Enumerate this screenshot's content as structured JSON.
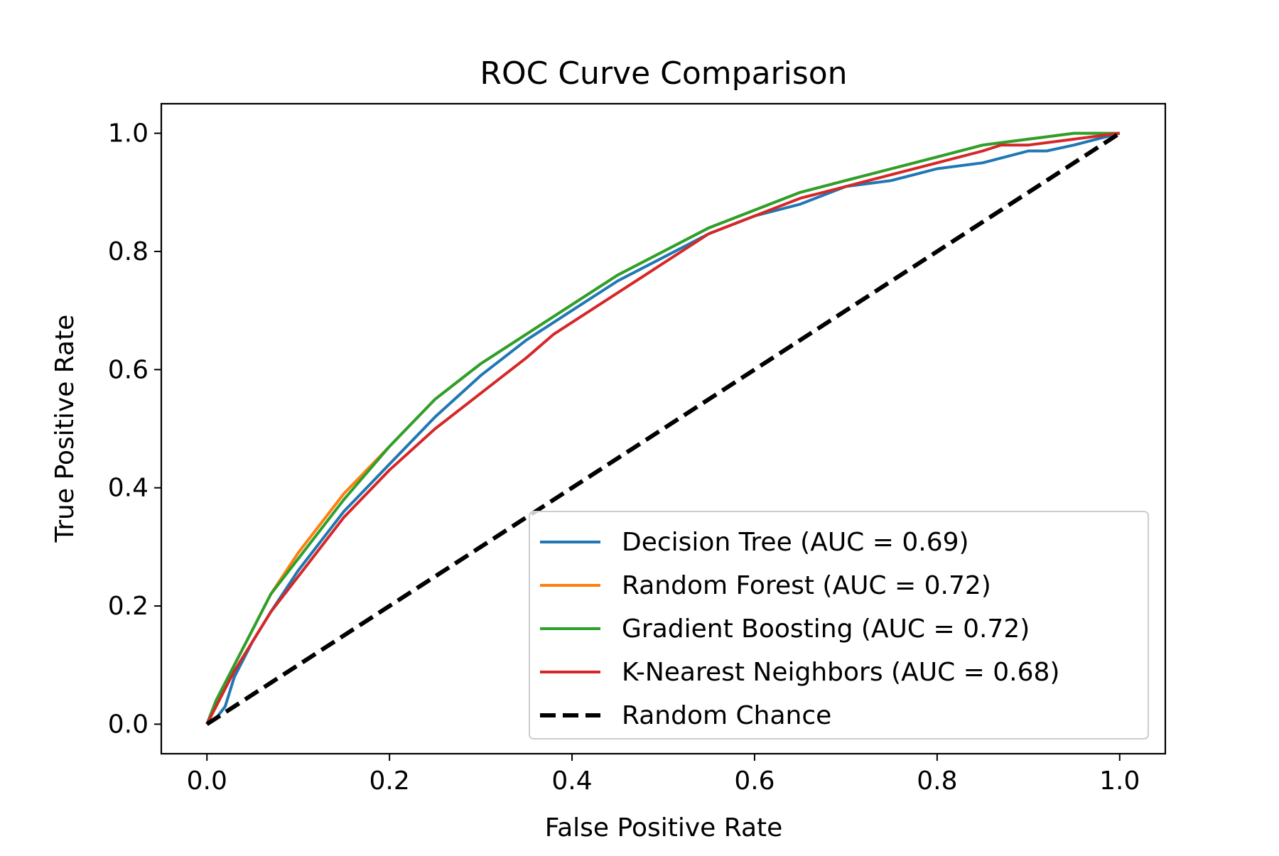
{
  "chart_data": {
    "type": "line",
    "title": "ROC Curve Comparison",
    "xlabel": "False Positive Rate",
    "ylabel": "True Positive Rate",
    "xlim": [
      -0.05,
      1.05
    ],
    "ylim": [
      -0.05,
      1.05
    ],
    "xticks": [
      "0.0",
      "0.2",
      "0.4",
      "0.6",
      "0.8",
      "1.0"
    ],
    "yticks": [
      "0.0",
      "0.2",
      "0.4",
      "0.6",
      "0.8",
      "1.0"
    ],
    "grid": false,
    "legend_position": "lower right",
    "series": [
      {
        "name": "Decision Tree (AUC = 0.69)",
        "color": "#1f77b4",
        "x": [
          0.0,
          0.01,
          0.02,
          0.03,
          0.05,
          0.07,
          0.1,
          0.15,
          0.2,
          0.25,
          0.3,
          0.35,
          0.4,
          0.45,
          0.5,
          0.55,
          0.6,
          0.65,
          0.7,
          0.75,
          0.8,
          0.85,
          0.9,
          0.92,
          0.95,
          1.0
        ],
        "y": [
          0.0,
          0.01,
          0.03,
          0.08,
          0.14,
          0.19,
          0.26,
          0.36,
          0.44,
          0.52,
          0.59,
          0.65,
          0.7,
          0.75,
          0.79,
          0.83,
          0.86,
          0.88,
          0.91,
          0.92,
          0.94,
          0.95,
          0.97,
          0.97,
          0.98,
          1.0
        ]
      },
      {
        "name": "Random Forest (AUC = 0.72)",
        "color": "#ff7f0e",
        "x": [
          0.0,
          0.01,
          0.02,
          0.03,
          0.05,
          0.07,
          0.1,
          0.15,
          0.2,
          0.25,
          0.3,
          0.35,
          0.4,
          0.45,
          0.5,
          0.55,
          0.6,
          0.65,
          0.7,
          0.75,
          0.8,
          0.85,
          0.9,
          0.95,
          1.0
        ],
        "y": [
          0.0,
          0.04,
          0.07,
          0.1,
          0.16,
          0.22,
          0.29,
          0.39,
          0.47,
          0.55,
          0.61,
          0.66,
          0.71,
          0.76,
          0.8,
          0.84,
          0.87,
          0.9,
          0.92,
          0.94,
          0.96,
          0.98,
          0.99,
          1.0,
          1.0
        ]
      },
      {
        "name": "Gradient Boosting (AUC = 0.72)",
        "color": "#2ca02c",
        "x": [
          0.0,
          0.01,
          0.02,
          0.03,
          0.05,
          0.07,
          0.1,
          0.15,
          0.2,
          0.25,
          0.3,
          0.35,
          0.4,
          0.45,
          0.5,
          0.55,
          0.6,
          0.65,
          0.7,
          0.75,
          0.8,
          0.85,
          0.9,
          0.95,
          1.0
        ],
        "y": [
          0.0,
          0.04,
          0.07,
          0.1,
          0.16,
          0.22,
          0.28,
          0.38,
          0.47,
          0.55,
          0.61,
          0.66,
          0.71,
          0.76,
          0.8,
          0.84,
          0.87,
          0.9,
          0.92,
          0.94,
          0.96,
          0.98,
          0.99,
          1.0,
          1.0
        ]
      },
      {
        "name": "K-Nearest Neighbors (AUC = 0.68)",
        "color": "#d62728",
        "x": [
          0.0,
          0.01,
          0.02,
          0.03,
          0.05,
          0.07,
          0.1,
          0.15,
          0.2,
          0.25,
          0.3,
          0.35,
          0.38,
          0.4,
          0.45,
          0.5,
          0.55,
          0.6,
          0.65,
          0.7,
          0.75,
          0.8,
          0.85,
          0.87,
          0.9,
          0.95,
          1.0
        ],
        "y": [
          0.0,
          0.03,
          0.06,
          0.09,
          0.14,
          0.19,
          0.25,
          0.35,
          0.43,
          0.5,
          0.56,
          0.62,
          0.66,
          0.68,
          0.73,
          0.78,
          0.83,
          0.86,
          0.89,
          0.91,
          0.93,
          0.95,
          0.97,
          0.98,
          0.98,
          0.99,
          1.0
        ]
      },
      {
        "name": "Random Chance",
        "color": "#000000",
        "dashed": true,
        "x": [
          0.0,
          1.0
        ],
        "y": [
          0.0,
          1.0
        ]
      }
    ]
  }
}
